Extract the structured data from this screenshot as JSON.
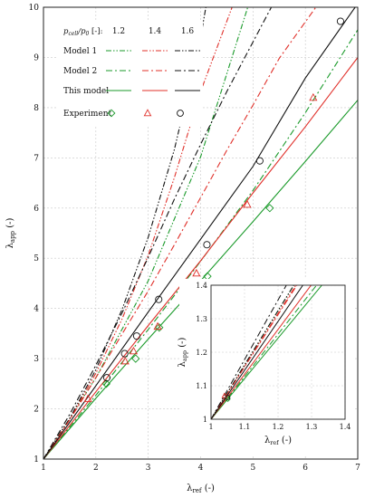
{
  "colors": {
    "green": "#1a9a2a",
    "red": "#e0302a",
    "black": "#111111",
    "axis": "#222222",
    "grid": "#c8c8c8"
  },
  "legend": {
    "header": "p_cell/p_0 [-]:",
    "header_parts": {
      "p": "p",
      "cell": "cell",
      "slash": "/",
      "p2": "p",
      "zero": "0",
      "unit": " [-]:"
    },
    "ratios": [
      "1.2",
      "1.4",
      "1.6"
    ],
    "rows": [
      {
        "label": "Model 1",
        "style": "dashdotdot"
      },
      {
        "label": "Model 2",
        "style": "dashdot"
      },
      {
        "label": "This model",
        "style": "solid"
      },
      {
        "label": "Experiment",
        "style": "markers"
      }
    ]
  },
  "chart_data": [
    {
      "type": "line",
      "title": "",
      "xlabel": "λ_ref (-)",
      "ylabel": "λ_app (-)",
      "xlabel_parts": {
        "main": "λ",
        "sub": "ref",
        "rest": " (-)"
      },
      "ylabel_parts": {
        "main": "λ",
        "sub": "app",
        "rest": " (-)"
      },
      "xlim": [
        1,
        7
      ],
      "ylim": [
        1,
        10
      ],
      "xticks": [
        1,
        2,
        3,
        4,
        5,
        6,
        7
      ],
      "yticks": [
        1,
        2,
        3,
        4,
        5,
        6,
        7,
        8,
        9,
        10
      ],
      "grid": true,
      "legend_position": "top-left",
      "series": [
        {
          "name": "Model 1 – 1.2",
          "color": "green",
          "dash": "6 2 1.5 2 1.5 2",
          "x": [
            1,
            2,
            3,
            4,
            4.9
          ],
          "y": [
            1,
            2.62,
            4.55,
            7.02,
            10
          ]
        },
        {
          "name": "Model 1 – 1.4",
          "color": "red",
          "dash": "6 2 1.5 2 1.5 2",
          "x": [
            1,
            1.5,
            2,
            2.5,
            3,
            3.5,
            4,
            4.6
          ],
          "y": [
            1,
            1.79,
            2.71,
            3.79,
            5.06,
            6.61,
            8.32,
            10
          ]
        },
        {
          "name": "Model 1 – 1.6",
          "color": "black",
          "dash": "6 2 1.5 2 1.5 2",
          "x": [
            1,
            1.5,
            2,
            2.5,
            3,
            3.5,
            4,
            4.1
          ],
          "y": [
            1,
            1.81,
            2.78,
            3.98,
            5.42,
            7.17,
            9.4,
            10
          ]
        },
        {
          "name": "Model 2 – 1.2",
          "color": "green",
          "dash": "7 3 2 3",
          "x": [
            1,
            2,
            3,
            4,
            5,
            6,
            7
          ],
          "y": [
            1,
            2.27,
            3.58,
            4.94,
            6.35,
            7.9,
            9.55
          ]
        },
        {
          "name": "Model 2 – 1.4",
          "color": "red",
          "dash": "7 3 2 3",
          "x": [
            1,
            1.5,
            2,
            2.5,
            3,
            3.5,
            4,
            4.5,
            5,
            5.5,
            6.2
          ],
          "y": [
            1,
            1.78,
            2.62,
            3.49,
            4.35,
            5.27,
            6.21,
            7.15,
            8.05,
            8.98,
            10
          ]
        },
        {
          "name": "Model 2 – 1.6",
          "color": "black",
          "dash": "7 3 2 3",
          "x": [
            1,
            1.5,
            2,
            2.5,
            3,
            3.5,
            4,
            4.5,
            5.35
          ],
          "y": [
            1,
            1.89,
            2.87,
            3.91,
            5.02,
            6.18,
            7.27,
            8.32,
            10
          ]
        },
        {
          "name": "This model – 1.2",
          "color": "green",
          "dash": "",
          "x": [
            1,
            2,
            3,
            4,
            5,
            6,
            7
          ],
          "y": [
            1,
            2.21,
            3.39,
            4.55,
            5.73,
            6.93,
            8.15
          ]
        },
        {
          "name": "This model – 1.4",
          "color": "red",
          "dash": "",
          "x": [
            1,
            2,
            3,
            4,
            5,
            6,
            7
          ],
          "y": [
            1,
            2.34,
            3.66,
            4.95,
            6.3,
            7.62,
            9.0
          ]
        },
        {
          "name": "This model – 1.6",
          "color": "black",
          "dash": "",
          "x": [
            1,
            2,
            3,
            4,
            5,
            6,
            6.95
          ],
          "y": [
            1,
            2.46,
            3.93,
            5.38,
            6.83,
            8.59,
            10
          ]
        },
        {
          "name": "Experiment – 1.2",
          "color": "green",
          "marker": "diamond",
          "x": [
            2.2,
            2.76,
            3.21,
            4.13,
            5.32
          ],
          "y": [
            2.5,
            3.0,
            3.62,
            4.64,
            6.0
          ]
        },
        {
          "name": "Experiment – 1.4",
          "color": "red",
          "marker": "triangle",
          "x": [
            1.85,
            2.56,
            2.72,
            3.18,
            3.92,
            4.89,
            6.15
          ],
          "y": [
            2.2,
            2.95,
            3.15,
            3.64,
            4.7,
            6.07,
            8.2
          ]
        },
        {
          "name": "Experiment – 1.6",
          "color": "black",
          "marker": "circle",
          "x": [
            2.21,
            2.55,
            2.78,
            3.2,
            4.12,
            5.13,
            6.67
          ],
          "y": [
            2.62,
            3.1,
            3.45,
            4.18,
            5.27,
            6.94,
            9.72
          ]
        }
      ]
    },
    {
      "type": "line",
      "title": "",
      "xlabel": "λ_ref (-)",
      "ylabel": "λ_app (-)",
      "xlabel_parts": {
        "main": "λ",
        "sub": "ref",
        "rest": " (-)"
      },
      "ylabel_parts": {
        "main": "λ",
        "sub": "app",
        "rest": " (-)"
      },
      "xlim": [
        1,
        1.4
      ],
      "ylim": [
        1,
        1.4
      ],
      "xticks": [
        "1",
        "1.1",
        "1.2",
        "1.3",
        "1.4"
      ],
      "yticks": [
        "1",
        "1.1",
        "1.2",
        "1.3",
        "1.4"
      ],
      "grid": true,
      "series_note": "inset zoom of same series",
      "marker_points": [
        {
          "color": "green",
          "marker": "diamond",
          "x": [
            1.05
          ],
          "y": [
            1.06
          ]
        },
        {
          "color": "red",
          "marker": "triangle",
          "x": [
            1.04
          ],
          "y": [
            1.07
          ]
        },
        {
          "color": "black",
          "marker": "circle",
          "x": [
            1.05
          ],
          "y": [
            1.065
          ]
        }
      ]
    }
  ]
}
